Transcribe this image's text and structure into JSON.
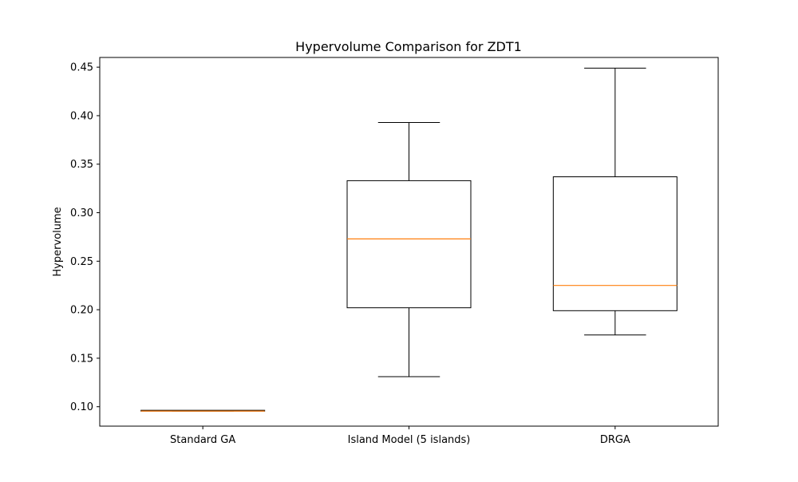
{
  "chart_data": {
    "type": "box",
    "title": "Hypervolume Comparison for ZDT1",
    "xlabel": "",
    "ylabel": "Hypervolume",
    "ylim": [
      0.08,
      0.46
    ],
    "yticks": [
      0.1,
      0.15,
      0.2,
      0.25,
      0.3,
      0.35,
      0.4,
      0.45
    ],
    "ytick_labels": [
      "0.10",
      "0.15",
      "0.20",
      "0.25",
      "0.30",
      "0.35",
      "0.40",
      "0.45"
    ],
    "grid": false,
    "categories": [
      "Standard GA",
      "Island Model (5 islands)",
      "DRGA"
    ],
    "boxes": [
      {
        "category": "Standard GA",
        "whisker_low": 0.0955,
        "q1": 0.0955,
        "median": 0.0955,
        "q3": 0.0957,
        "whisker_high": 0.0957
      },
      {
        "category": "Island Model (5 islands)",
        "whisker_low": 0.131,
        "q1": 0.202,
        "median": 0.273,
        "q3": 0.333,
        "whisker_high": 0.393
      },
      {
        "category": "DRGA",
        "whisker_low": 0.174,
        "q1": 0.199,
        "median": 0.225,
        "q3": 0.337,
        "whisker_high": 0.449
      }
    ],
    "colors": {
      "box": "#000000",
      "median": "#ff7f0e"
    }
  }
}
